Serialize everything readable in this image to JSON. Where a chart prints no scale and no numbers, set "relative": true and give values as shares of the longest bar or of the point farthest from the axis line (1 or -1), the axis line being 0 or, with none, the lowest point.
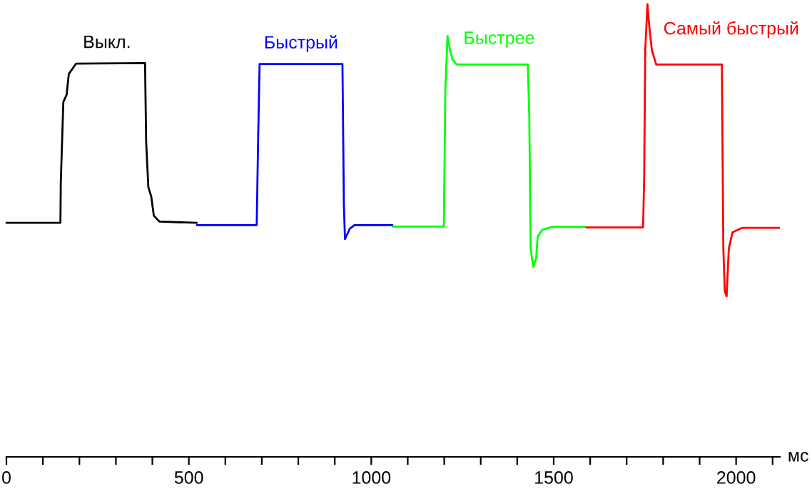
{
  "chart_data": {
    "type": "line",
    "relative": true,
    "xlabel": "мс",
    "xlim": [
      0,
      2120
    ],
    "xticks": [
      0,
      {
        "value": 100,
        "label": null
      },
      {
        "value": 200,
        "label": null
      },
      {
        "value": 300,
        "label": null
      },
      {
        "value": 400,
        "label": null
      },
      500,
      {
        "value": 600,
        "label": null
      },
      {
        "value": 700,
        "label": null
      },
      {
        "value": 800,
        "label": null
      },
      {
        "value": 900,
        "label": null
      },
      1000,
      {
        "value": 1100,
        "label": null
      },
      {
        "value": 1200,
        "label": null
      },
      {
        "value": 1300,
        "label": null
      },
      {
        "value": 1400,
        "label": null
      },
      1500,
      {
        "value": 1600,
        "label": null
      },
      {
        "value": 1700,
        "label": null
      },
      {
        "value": 1800,
        "label": null
      },
      {
        "value": 1900,
        "label": null
      },
      2000,
      {
        "value": 2100,
        "label": null
      }
    ],
    "tick_labels": "x",
    "grid": false,
    "legend": false,
    "series": [
      {
        "name": "Выкл.",
        "color": "#000000",
        "x": [
          0,
          148,
          149,
          156,
          165,
          171,
          191,
          380,
          383,
          389,
          397,
          404,
          419,
          522
        ],
        "values": [
          0.517,
          0.517,
          0.606,
          0.784,
          0.8,
          0.846,
          0.869,
          0.87,
          0.695,
          0.596,
          0.575,
          0.533,
          0.52,
          0.517
        ]
      },
      {
        "name": "Быстрый",
        "color": "#0000ff",
        "x": [
          522,
          686,
          690,
          694,
          921,
          925,
          928,
          941,
          954,
          1058
        ],
        "values": [
          0.512,
          0.512,
          0.705,
          0.868,
          0.868,
          0.555,
          0.481,
          0.504,
          0.512,
          0.512
        ]
      },
      {
        "name": "Быстрее",
        "color": "#00ff00",
        "x": [
          1058,
          1199,
          1203,
          1209,
          1216,
          1223,
          1234,
          1429,
          1433,
          1437,
          1444,
          1452,
          1456,
          1469,
          1495,
          1590
        ],
        "values": [
          0.509,
          0.509,
          0.81,
          0.93,
          0.899,
          0.878,
          0.867,
          0.867,
          0.758,
          0.46,
          0.42,
          0.439,
          0.486,
          0.502,
          0.508,
          0.508
        ]
      },
      {
        "name": "Самый быстрый",
        "color": "#ff0000",
        "x": [
          1590,
          1745,
          1748,
          1751,
          1757,
          1762,
          1769,
          1781,
          1961,
          1965,
          1969,
          1974,
          1980,
          1990,
          2016,
          2118
        ],
        "values": [
          0.507,
          0.507,
          0.617,
          0.899,
          1.0,
          0.951,
          0.899,
          0.867,
          0.867,
          0.46,
          0.366,
          0.355,
          0.46,
          0.496,
          0.506,
          0.506
        ]
      }
    ]
  }
}
